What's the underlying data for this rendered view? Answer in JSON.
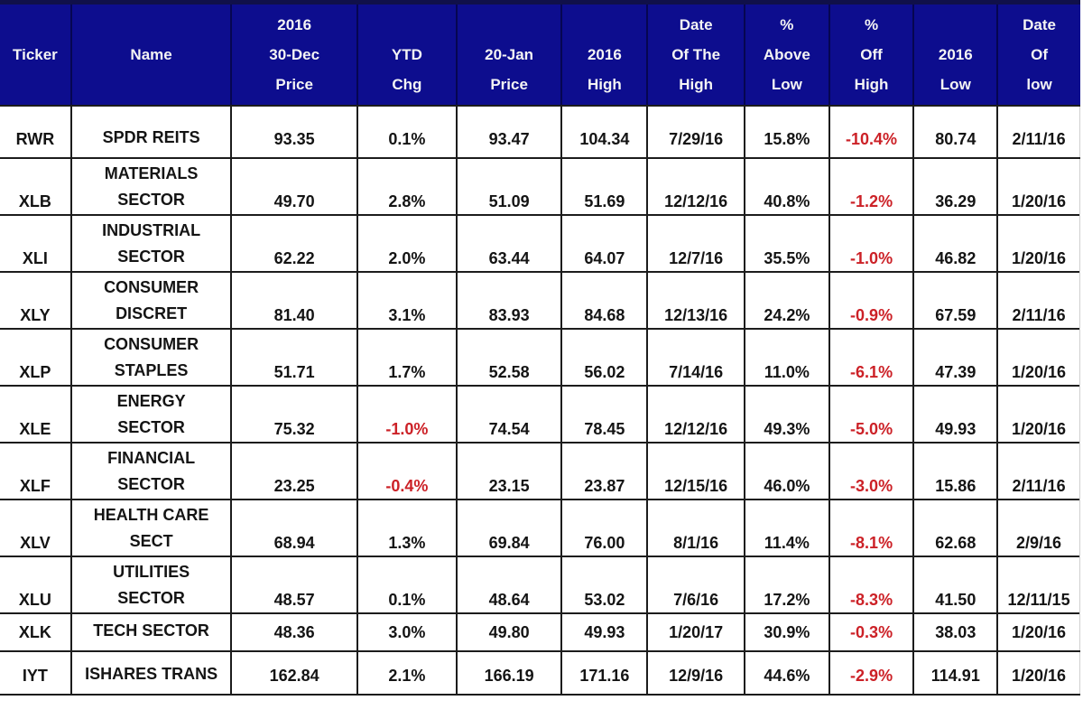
{
  "colors": {
    "header_bg": "#0d0d8e",
    "header_text": "#f4f4f4",
    "grid": "#1c1c1c",
    "body_text": "#141414",
    "negative": "#cc2127"
  },
  "table": {
    "header": [
      {
        "id": "ticker",
        "lines": [
          "",
          "Ticker",
          ""
        ]
      },
      {
        "id": "name",
        "lines": [
          "",
          "Name",
          ""
        ]
      },
      {
        "id": "dec-price",
        "lines": [
          "2016",
          "30-Dec",
          "Price"
        ]
      },
      {
        "id": "ytd-chg",
        "lines": [
          "",
          "YTD",
          "Chg"
        ]
      },
      {
        "id": "jan-price",
        "lines": [
          "",
          "20-Jan",
          "Price"
        ]
      },
      {
        "id": "high",
        "lines": [
          "",
          "2016",
          "High"
        ]
      },
      {
        "id": "high-date",
        "lines": [
          "Date",
          "Of The",
          "High"
        ]
      },
      {
        "id": "above-low",
        "lines": [
          "%",
          "Above",
          "Low"
        ]
      },
      {
        "id": "off-high",
        "lines": [
          "%",
          "Off",
          "High"
        ]
      },
      {
        "id": "low",
        "lines": [
          "",
          "2016",
          "Low"
        ]
      },
      {
        "id": "low-date",
        "lines": [
          "Date",
          "Of",
          "low"
        ]
      }
    ],
    "value_column_ids": [
      "dec-price",
      "ytd-chg",
      "jan-price",
      "high",
      "high-date",
      "above-low",
      "off-high",
      "low",
      "low-date"
    ],
    "rows": [
      {
        "ticker": "RWR",
        "name_lines": [
          "SPDR REITS"
        ],
        "values": [
          "93.35",
          "0.1%",
          "93.47",
          "104.34",
          "7/29/16",
          "15.8%",
          "-10.4%",
          "80.74",
          "2/11/16"
        ]
      },
      {
        "ticker": "XLB",
        "name_lines": [
          "MATERIALS",
          "SECTOR"
        ],
        "values": [
          "49.70",
          "2.8%",
          "51.09",
          "51.69",
          "12/12/16",
          "40.8%",
          "-1.2%",
          "36.29",
          "1/20/16"
        ]
      },
      {
        "ticker": "XLI",
        "name_lines": [
          "INDUSTRIAL",
          "SECTOR"
        ],
        "values": [
          "62.22",
          "2.0%",
          "63.44",
          "64.07",
          "12/7/16",
          "35.5%",
          "-1.0%",
          "46.82",
          "1/20/16"
        ]
      },
      {
        "ticker": "XLY",
        "name_lines": [
          "CONSUMER",
          "DISCRET"
        ],
        "values": [
          "81.40",
          "3.1%",
          "83.93",
          "84.68",
          "12/13/16",
          "24.2%",
          "-0.9%",
          "67.59",
          "2/11/16"
        ]
      },
      {
        "ticker": "XLP",
        "name_lines": [
          "CONSUMER",
          "STAPLES"
        ],
        "values": [
          "51.71",
          "1.7%",
          "52.58",
          "56.02",
          "7/14/16",
          "11.0%",
          "-6.1%",
          "47.39",
          "1/20/16"
        ]
      },
      {
        "ticker": "XLE",
        "name_lines": [
          "ENERGY",
          "SECTOR"
        ],
        "values": [
          "75.32",
          "-1.0%",
          "74.54",
          "78.45",
          "12/12/16",
          "49.3%",
          "-5.0%",
          "49.93",
          "1/20/16"
        ]
      },
      {
        "ticker": "XLF",
        "name_lines": [
          "FINANCIAL",
          "SECTOR"
        ],
        "values": [
          "23.25",
          "-0.4%",
          "23.15",
          "23.87",
          "12/15/16",
          "46.0%",
          "-3.0%",
          "15.86",
          "2/11/16"
        ]
      },
      {
        "ticker": "XLV",
        "name_lines": [
          "HEALTH CARE",
          "SECT"
        ],
        "values": [
          "68.94",
          "1.3%",
          "69.84",
          "76.00",
          "8/1/16",
          "11.4%",
          "-8.1%",
          "62.68",
          "2/9/16"
        ]
      },
      {
        "ticker": "XLU",
        "name_lines": [
          "UTILITIES",
          "SECTOR"
        ],
        "values": [
          "48.57",
          "0.1%",
          "48.64",
          "53.02",
          "7/6/16",
          "17.2%",
          "-8.3%",
          "41.50",
          "12/11/15"
        ]
      },
      {
        "ticker": "XLK",
        "name_lines": [
          "TECH SECTOR"
        ],
        "values": [
          "48.36",
          "3.0%",
          "49.80",
          "49.93",
          "1/20/17",
          "30.9%",
          "-0.3%",
          "38.03",
          "1/20/16"
        ]
      },
      {
        "ticker": "IYT",
        "name_lines": [
          "ISHARES TRANS"
        ],
        "values": [
          "162.84",
          "2.1%",
          "166.19",
          "171.16",
          "12/9/16",
          "44.6%",
          "-2.9%",
          "114.91",
          "1/20/16"
        ]
      }
    ]
  },
  "chart_data": {
    "type": "table",
    "columns": [
      "Ticker",
      "Name",
      "2016 30-Dec Price",
      "YTD Chg",
      "20-Jan Price",
      "2016 High",
      "Date Of The High",
      "% Above Low",
      "% Off High",
      "2016 Low",
      "Date Of low"
    ],
    "rows": [
      [
        "RWR",
        "SPDR REITS",
        "93.35",
        "0.1%",
        "93.47",
        "104.34",
        "7/29/16",
        "15.8%",
        "-10.4%",
        "80.74",
        "2/11/16"
      ],
      [
        "XLB",
        "MATERIALS SECTOR",
        "49.70",
        "2.8%",
        "51.09",
        "51.69",
        "12/12/16",
        "40.8%",
        "-1.2%",
        "36.29",
        "1/20/16"
      ],
      [
        "XLI",
        "INDUSTRIAL SECTOR",
        "62.22",
        "2.0%",
        "63.44",
        "64.07",
        "12/7/16",
        "35.5%",
        "-1.0%",
        "46.82",
        "1/20/16"
      ],
      [
        "XLY",
        "CONSUMER DISCRET",
        "81.40",
        "3.1%",
        "83.93",
        "84.68",
        "12/13/16",
        "24.2%",
        "-0.9%",
        "67.59",
        "2/11/16"
      ],
      [
        "XLP",
        "CONSUMER STAPLES",
        "51.71",
        "1.7%",
        "52.58",
        "56.02",
        "7/14/16",
        "11.0%",
        "-6.1%",
        "47.39",
        "1/20/16"
      ],
      [
        "XLE",
        "ENERGY SECTOR",
        "75.32",
        "-1.0%",
        "74.54",
        "78.45",
        "12/12/16",
        "49.3%",
        "-5.0%",
        "49.93",
        "1/20/16"
      ],
      [
        "XLF",
        "FINANCIAL SECTOR",
        "23.25",
        "-0.4%",
        "23.15",
        "23.87",
        "12/15/16",
        "46.0%",
        "-3.0%",
        "15.86",
        "2/11/16"
      ],
      [
        "XLV",
        "HEALTH CARE SECT",
        "68.94",
        "1.3%",
        "69.84",
        "76.00",
        "8/1/16",
        "11.4%",
        "-8.1%",
        "62.68",
        "2/9/16"
      ],
      [
        "XLU",
        "UTILITIES SECTOR",
        "48.57",
        "0.1%",
        "48.64",
        "53.02",
        "7/6/16",
        "17.2%",
        "-8.3%",
        "41.50",
        "12/11/15"
      ],
      [
        "XLK",
        "TECH SECTOR",
        "48.36",
        "3.0%",
        "49.80",
        "49.93",
        "1/20/17",
        "30.9%",
        "-0.3%",
        "38.03",
        "1/20/16"
      ],
      [
        "IYT",
        "ISHARES TRANS",
        "162.84",
        "2.1%",
        "166.19",
        "171.16",
        "12/9/16",
        "44.6%",
        "-2.9%",
        "114.91",
        "1/20/16"
      ]
    ],
    "negative_color_cells": "all '% Off High' values and negative 'YTD Chg' values are red"
  }
}
